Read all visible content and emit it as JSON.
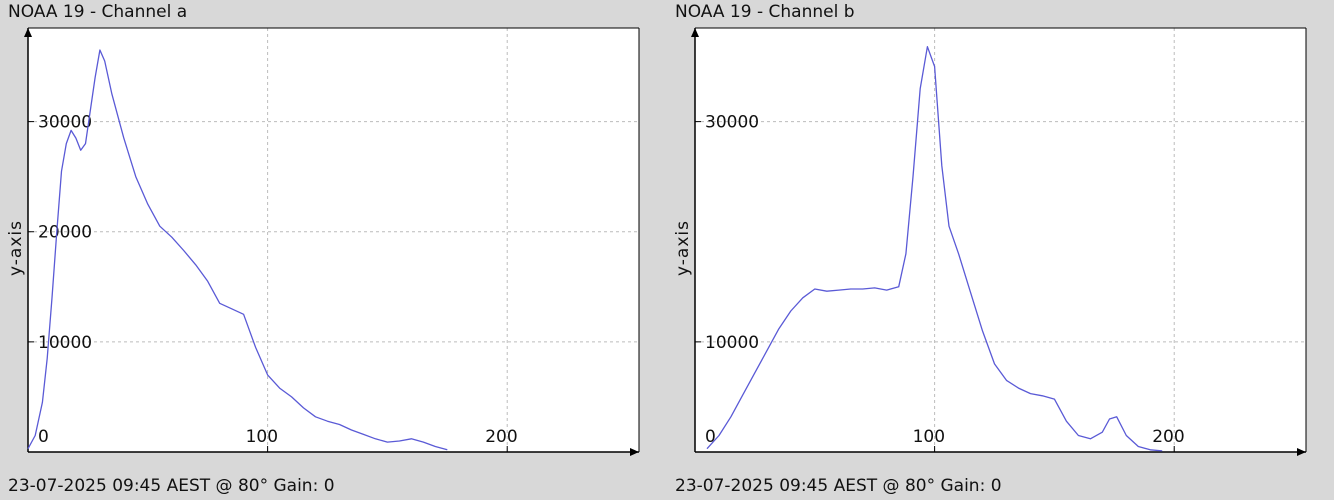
{
  "chart_data": [
    {
      "type": "line",
      "title": "NOAA 19 - Channel a",
      "footer": "23-07-2025 09:45 AEST @ 80° Gain: 0",
      "ylabel": "y-axis",
      "xlabel": "",
      "xlim": [
        0,
        255
      ],
      "ylim": [
        0,
        38500
      ],
      "x_ticks": [
        0,
        100,
        200
      ],
      "y_ticks": [
        10000,
        20000,
        30000
      ],
      "grid": true,
      "line_color": "#5a5ad6",
      "series": [
        {
          "name": "",
          "points": [
            [
              0,
              300
            ],
            [
              3,
              1500
            ],
            [
              6,
              4500
            ],
            [
              8,
              8500
            ],
            [
              10,
              14000
            ],
            [
              12,
              20000
            ],
            [
              14,
              25500
            ],
            [
              16,
              28000
            ],
            [
              18,
              29200
            ],
            [
              20,
              28500
            ],
            [
              22,
              27400
            ],
            [
              24,
              28000
            ],
            [
              26,
              31000
            ],
            [
              28,
              34000
            ],
            [
              30,
              36500
            ],
            [
              32,
              35500
            ],
            [
              35,
              32500
            ],
            [
              40,
              28500
            ],
            [
              45,
              25000
            ],
            [
              50,
              22500
            ],
            [
              55,
              20500
            ],
            [
              60,
              19500
            ],
            [
              65,
              18300
            ],
            [
              70,
              17000
            ],
            [
              75,
              15500
            ],
            [
              80,
              13500
            ],
            [
              85,
              13000
            ],
            [
              90,
              12500
            ],
            [
              95,
              9500
            ],
            [
              100,
              7000
            ],
            [
              105,
              5800
            ],
            [
              110,
              5000
            ],
            [
              115,
              4000
            ],
            [
              120,
              3200
            ],
            [
              125,
              2800
            ],
            [
              130,
              2500
            ],
            [
              135,
              2000
            ],
            [
              140,
              1600
            ],
            [
              145,
              1200
            ],
            [
              150,
              900
            ],
            [
              155,
              1000
            ],
            [
              160,
              1200
            ],
            [
              165,
              900
            ],
            [
              170,
              500
            ],
            [
              175,
              200
            ]
          ]
        }
      ]
    },
    {
      "type": "line",
      "title": "NOAA 19 - Channel b",
      "footer": "23-07-2025 09:45 AEST @ 80° Gain: 0",
      "ylabel": "y-axis",
      "xlabel": "",
      "xlim": [
        0,
        255
      ],
      "ylim": [
        0,
        38500
      ],
      "x_ticks": [
        0,
        100,
        200
      ],
      "y_ticks": [
        10000,
        30000
      ],
      "grid": true,
      "line_color": "#5a5ad6",
      "series": [
        {
          "name": "",
          "points": [
            [
              5,
              300
            ],
            [
              10,
              1500
            ],
            [
              15,
              3200
            ],
            [
              20,
              5200
            ],
            [
              25,
              7200
            ],
            [
              30,
              9200
            ],
            [
              35,
              11200
            ],
            [
              40,
              12800
            ],
            [
              45,
              14000
            ],
            [
              50,
              14800
            ],
            [
              55,
              14600
            ],
            [
              60,
              14700
            ],
            [
              65,
              14800
            ],
            [
              70,
              14800
            ],
            [
              75,
              14900
            ],
            [
              80,
              14700
            ],
            [
              85,
              15000
            ],
            [
              88,
              18000
            ],
            [
              91,
              25000
            ],
            [
              94,
              33000
            ],
            [
              97,
              36800
            ],
            [
              100,
              35000
            ],
            [
              103,
              26000
            ],
            [
              106,
              20500
            ],
            [
              110,
              18000
            ],
            [
              115,
              14500
            ],
            [
              120,
              11000
            ],
            [
              125,
              8000
            ],
            [
              130,
              6500
            ],
            [
              135,
              5800
            ],
            [
              140,
              5300
            ],
            [
              145,
              5100
            ],
            [
              150,
              4800
            ],
            [
              155,
              2800
            ],
            [
              160,
              1500
            ],
            [
              165,
              1200
            ],
            [
              170,
              1800
            ],
            [
              173,
              3000
            ],
            [
              176,
              3200
            ],
            [
              180,
              1500
            ],
            [
              185,
              500
            ],
            [
              190,
              200
            ],
            [
              195,
              100
            ]
          ]
        }
      ]
    }
  ]
}
